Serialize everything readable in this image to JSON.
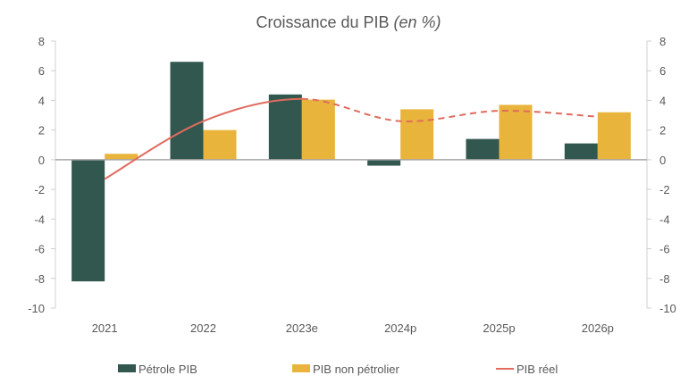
{
  "chart_data": {
    "type": "bar",
    "title": "Croissance du PIB",
    "title_italic": "(en %)",
    "categories": [
      "2021",
      "2022",
      "2023e",
      "2024p",
      "2025p",
      "2026p"
    ],
    "ylim": [
      -10,
      8
    ],
    "yticks": [
      8,
      6,
      4,
      2,
      0,
      -2,
      -4,
      -6,
      -8,
      -10
    ],
    "y_axis_both_sides": true,
    "grid": false,
    "legend_position": "bottom",
    "series": [
      {
        "name": "Pétrole PIB",
        "kind": "bar",
        "color": "#31574E",
        "values": [
          -8.2,
          6.6,
          4.4,
          -0.4,
          1.4,
          1.1
        ]
      },
      {
        "name": "PIB non pétrolier",
        "kind": "bar",
        "color": "#E9B43B",
        "values": [
          0.4,
          2.0,
          4.05,
          3.4,
          3.7,
          3.2
        ]
      },
      {
        "name": "PIB réel",
        "kind": "line",
        "color": "#E06B5F",
        "values": [
          -1.3,
          2.6,
          4.1,
          2.6,
          3.3,
          2.9
        ],
        "dashed_from": "2023e"
      }
    ]
  }
}
